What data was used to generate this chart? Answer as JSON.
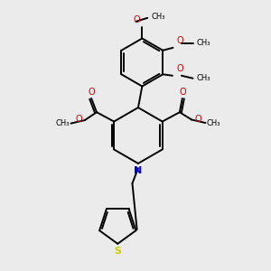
{
  "bg_color": "#ebebeb",
  "bond_color": "#000000",
  "N_color": "#0000cc",
  "O_color": "#cc0000",
  "S_color": "#cccc00",
  "linewidth": 1.4,
  "fontsize": 7.0,
  "figsize": [
    3.0,
    3.0
  ],
  "dpi": 100,
  "xlim": [
    0,
    10
  ],
  "ylim": [
    0,
    10
  ]
}
